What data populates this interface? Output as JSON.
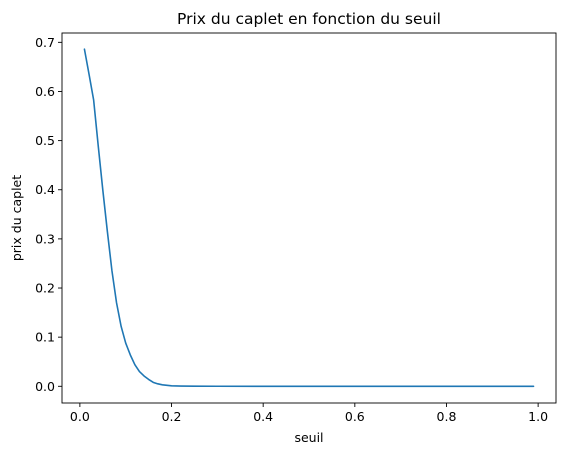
{
  "chart_data": {
    "type": "line",
    "title": "Prix du caplet en fonction du seuil",
    "xlabel": "seuil",
    "ylabel": "prix du caplet",
    "xlim": [
      -0.039,
      1.039
    ],
    "ylim": [
      -0.034,
      0.719
    ],
    "xticks": [
      0.0,
      0.2,
      0.4,
      0.6,
      0.8,
      1.0
    ],
    "xtick_labels": [
      "0.0",
      "0.2",
      "0.4",
      "0.6",
      "0.8",
      "1.0"
    ],
    "yticks": [
      0.0,
      0.1,
      0.2,
      0.3,
      0.4,
      0.5,
      0.6,
      0.7
    ],
    "ytick_labels": [
      "0.0",
      "0.1",
      "0.2",
      "0.3",
      "0.4",
      "0.5",
      "0.6",
      "0.7"
    ],
    "grid": false,
    "series": [
      {
        "color": "#1f77b4",
        "x": [
          0.01,
          0.02,
          0.03,
          0.04,
          0.05,
          0.06,
          0.07,
          0.08,
          0.09,
          0.1,
          0.11,
          0.12,
          0.13,
          0.14,
          0.15,
          0.16,
          0.17,
          0.18,
          0.19,
          0.2,
          0.22,
          0.25,
          0.3,
          0.4,
          0.5,
          0.6,
          0.7,
          0.8,
          0.9,
          0.99
        ],
        "y": [
          0.686,
          0.635,
          0.583,
          0.49,
          0.4,
          0.315,
          0.235,
          0.17,
          0.122,
          0.088,
          0.064,
          0.044,
          0.03,
          0.021,
          0.014,
          0.008,
          0.005,
          0.003,
          0.002,
          0.001,
          0.0005,
          0.0002,
          0.0001,
          0.0,
          0.0,
          0.0,
          0.0,
          0.0,
          0.0,
          0.0
        ]
      }
    ]
  }
}
